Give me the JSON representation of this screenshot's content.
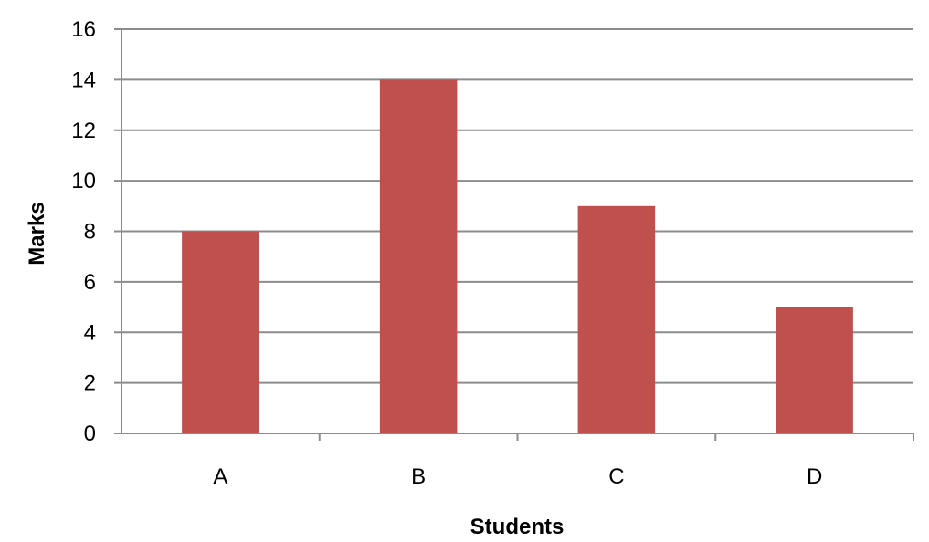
{
  "chart_data": {
    "type": "bar",
    "title": "",
    "xlabel": "Students",
    "ylabel": "Marks",
    "categories": [
      "A",
      "B",
      "C",
      "D"
    ],
    "values": [
      8,
      14,
      9,
      5
    ],
    "ylim": [
      0,
      16
    ],
    "yticks": [
      0,
      2,
      4,
      6,
      8,
      10,
      12,
      14,
      16
    ],
    "grid": true,
    "legend": "none",
    "colors": {
      "bar": "#c0504d",
      "grid": "#8c8c8c",
      "axis": "#8c8c8c",
      "text": "#000000"
    }
  }
}
